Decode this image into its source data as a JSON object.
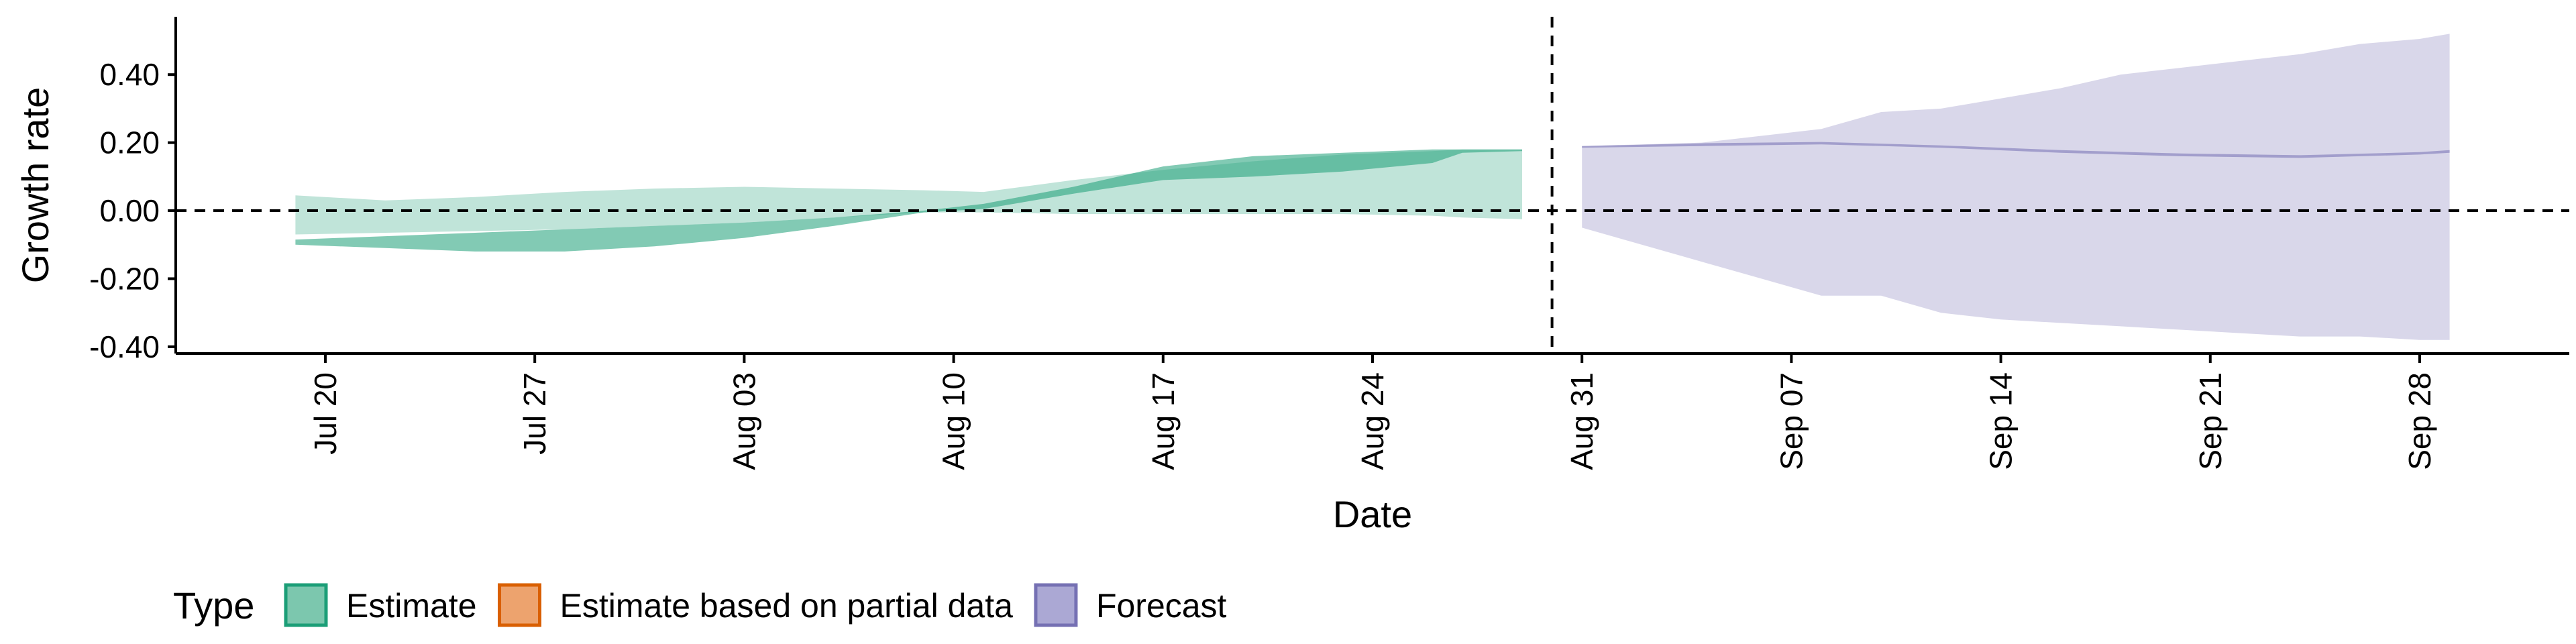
{
  "chart_data": {
    "type": "area",
    "xlabel": "Date",
    "ylabel": "Growth rate",
    "x_range": [
      "2020-07-15",
      "2020-10-03"
    ],
    "ylim": [
      -0.42,
      0.57
    ],
    "x_ticks": [
      {
        "date": "2020-07-20",
        "label": "Jul 20"
      },
      {
        "date": "2020-07-27",
        "label": "Jul 27"
      },
      {
        "date": "2020-08-03",
        "label": "Aug 03"
      },
      {
        "date": "2020-08-10",
        "label": "Aug 10"
      },
      {
        "date": "2020-08-17",
        "label": "Aug 17"
      },
      {
        "date": "2020-08-24",
        "label": "Aug 24"
      },
      {
        "date": "2020-08-31",
        "label": "Aug 31"
      },
      {
        "date": "2020-09-07",
        "label": "Sep 07"
      },
      {
        "date": "2020-09-14",
        "label": "Sep 14"
      },
      {
        "date": "2020-09-21",
        "label": "Sep 21"
      },
      {
        "date": "2020-09-28",
        "label": "Sep 28"
      }
    ],
    "y_ticks": [
      {
        "value": 0.4,
        "label": "0.40"
      },
      {
        "value": 0.2,
        "label": "0.20"
      },
      {
        "value": 0.0,
        "label": "0.00"
      },
      {
        "value": -0.2,
        "label": "-0.20"
      },
      {
        "value": -0.4,
        "label": "-0.40"
      }
    ],
    "reference_lines": {
      "horizontal_y": 0.0,
      "vertical_date": "2020-08-30"
    },
    "grid": false,
    "legend": {
      "title": "Type",
      "position": "bottom",
      "items": [
        {
          "label": "Estimate",
          "fill": "#7cc7ae",
          "stroke": "#1b9e77"
        },
        {
          "label": "Estimate based on partial data",
          "fill": "#eda36e",
          "stroke": "#d95f02"
        },
        {
          "label": "Forecast",
          "fill": "#aba8d4",
          "stroke": "#7570b3"
        }
      ]
    },
    "series": [
      {
        "name": "Estimate",
        "color": "#1b9e77",
        "bands": [
          {
            "level": "outer",
            "opacity": 0.28,
            "x": [
              "2020-07-19",
              "2020-07-22",
              "2020-07-25",
              "2020-07-28",
              "2020-07-31",
              "2020-08-03",
              "2020-08-06",
              "2020-08-09",
              "2020-08-11",
              "2020-08-14",
              "2020-08-17",
              "2020-08-20",
              "2020-08-23",
              "2020-08-26",
              "2020-08-27",
              "2020-08-29"
            ],
            "lower": [
              -0.07,
              -0.065,
              -0.06,
              -0.055,
              -0.045,
              -0.035,
              -0.02,
              -0.005,
              -0.005,
              -0.01,
              -0.01,
              -0.01,
              -0.01,
              -0.015,
              -0.02,
              -0.025
            ],
            "upper": [
              0.045,
              0.03,
              0.04,
              0.055,
              0.065,
              0.07,
              0.065,
              0.06,
              0.055,
              0.09,
              0.12,
              0.145,
              0.165,
              0.175,
              0.18,
              0.18
            ]
          },
          {
            "level": "inner",
            "opacity": 0.55,
            "x": [
              "2020-07-19",
              "2020-07-22",
              "2020-07-25",
              "2020-07-28",
              "2020-07-31",
              "2020-08-03",
              "2020-08-06",
              "2020-08-09",
              "2020-08-11",
              "2020-08-14",
              "2020-08-17",
              "2020-08-20",
              "2020-08-23",
              "2020-08-26",
              "2020-08-27",
              "2020-08-29"
            ],
            "lower": [
              -0.1,
              -0.11,
              -0.12,
              -0.12,
              -0.105,
              -0.08,
              -0.045,
              -0.005,
              0.005,
              0.05,
              0.09,
              0.1,
              0.115,
              0.14,
              0.17,
              0.175
            ],
            "upper": [
              -0.085,
              -0.075,
              -0.065,
              -0.055,
              -0.045,
              -0.035,
              -0.02,
              0.0,
              0.02,
              0.07,
              0.13,
              0.16,
              0.17,
              0.18,
              0.18,
              0.18
            ]
          }
        ]
      },
      {
        "name": "Forecast",
        "color": "#7570b3",
        "bands": [
          {
            "level": "outer",
            "opacity": 0.28,
            "x": [
              "2020-08-31",
              "2020-09-02",
              "2020-09-04",
              "2020-09-06",
              "2020-09-08",
              "2020-09-10",
              "2020-09-12",
              "2020-09-14",
              "2020-09-16",
              "2020-09-18",
              "2020-09-20",
              "2020-09-22",
              "2020-09-24",
              "2020-09-26",
              "2020-09-28",
              "2020-09-29"
            ],
            "lower": [
              -0.05,
              -0.1,
              -0.15,
              -0.2,
              -0.25,
              -0.25,
              -0.3,
              -0.32,
              -0.33,
              -0.34,
              -0.35,
              -0.36,
              -0.37,
              -0.37,
              -0.38,
              -0.38
            ],
            "upper": [
              0.19,
              0.195,
              0.2,
              0.22,
              0.24,
              0.29,
              0.3,
              0.33,
              0.36,
              0.4,
              0.42,
              0.44,
              0.46,
              0.49,
              0.505,
              0.52
            ]
          },
          {
            "level": "inner",
            "opacity": 0.55,
            "x": [
              "2020-08-31",
              "2020-09-04",
              "2020-09-08",
              "2020-09-12",
              "2020-09-16",
              "2020-09-20",
              "2020-09-24",
              "2020-09-28",
              "2020-09-29"
            ],
            "lower": [
              0.185,
              0.19,
              0.195,
              0.185,
              0.17,
              0.16,
              0.155,
              0.165,
              0.17
            ],
            "upper": [
              0.19,
              0.198,
              0.202,
              0.192,
              0.178,
              0.168,
              0.163,
              0.172,
              0.178
            ]
          }
        ]
      }
    ]
  }
}
